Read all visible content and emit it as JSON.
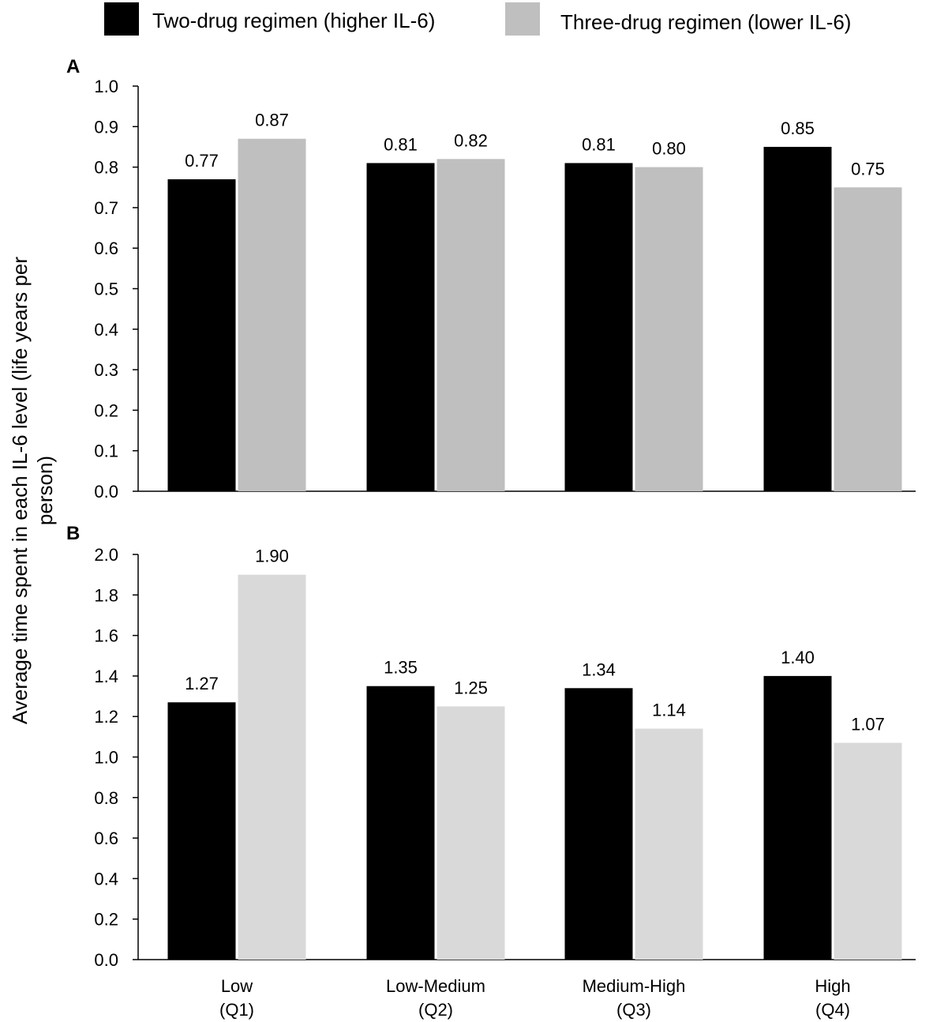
{
  "legend": {
    "items": [
      {
        "label": "Two-drug regimen (higher IL-6)",
        "color": "#000000"
      },
      {
        "label": "Three-drug regimen (lower IL-6)",
        "color": "#bfbfbf"
      }
    ]
  },
  "ylabel_lines": [
    "Average time spent in each IL-6 level (life years per",
    "person)"
  ],
  "category_labels": [
    {
      "line1": "Low",
      "line2": "(Q1)"
    },
    {
      "line1": "Low-Medium",
      "line2": "(Q2)"
    },
    {
      "line1": "Medium-High",
      "line2": "(Q3)"
    },
    {
      "line1": "High",
      "line2": "(Q4)"
    }
  ],
  "chart_data": [
    {
      "type": "bar",
      "panel": "A",
      "title": "",
      "categories": [
        "Low (Q1)",
        "Low-Medium (Q2)",
        "Medium-High (Q3)",
        "High (Q4)"
      ],
      "series": [
        {
          "name": "Two-drug regimen (higher IL-6)",
          "color": "#000000",
          "values": [
            0.77,
            0.81,
            0.81,
            0.85
          ],
          "labels": [
            "0.77",
            "0.81",
            "0.81",
            "0.85"
          ]
        },
        {
          "name": "Three-drug regimen (lower IL-6)",
          "color": "#bfbfbf",
          "values": [
            0.87,
            0.82,
            0.8,
            0.75
          ],
          "labels": [
            "0.87",
            "0.82",
            "0.80",
            "0.75"
          ]
        }
      ],
      "ylim": [
        0,
        1.0
      ],
      "yticks": [
        "0.0",
        "0.1",
        "0.2",
        "0.3",
        "0.4",
        "0.5",
        "0.6",
        "0.7",
        "0.8",
        "0.9",
        "1.0"
      ],
      "grid": false,
      "legend": "top"
    },
    {
      "type": "bar",
      "panel": "B",
      "title": "",
      "categories": [
        "Low (Q1)",
        "Low-Medium (Q2)",
        "Medium-High (Q3)",
        "High (Q4)"
      ],
      "series": [
        {
          "name": "Two-drug regimen (higher IL-6)",
          "color": "#000000",
          "values": [
            1.27,
            1.35,
            1.34,
            1.4
          ],
          "labels": [
            "1.27",
            "1.35",
            "1.34",
            "1.40"
          ]
        },
        {
          "name": "Three-drug regimen (lower IL-6)",
          "color": "#d9d9d9",
          "values": [
            1.9,
            1.25,
            1.14,
            1.07
          ],
          "labels": [
            "1.90",
            "1.25",
            "1.14",
            "1.07"
          ]
        }
      ],
      "ylim": [
        0,
        2.0
      ],
      "yticks": [
        "0.0",
        "0.2",
        "0.4",
        "0.6",
        "0.8",
        "1.0",
        "1.2",
        "1.4",
        "1.6",
        "1.8",
        "2.0"
      ],
      "grid": false,
      "legend": "top"
    }
  ],
  "ylabel": "Average time spent in each IL-6 level (life years per person)",
  "xlabel": ""
}
